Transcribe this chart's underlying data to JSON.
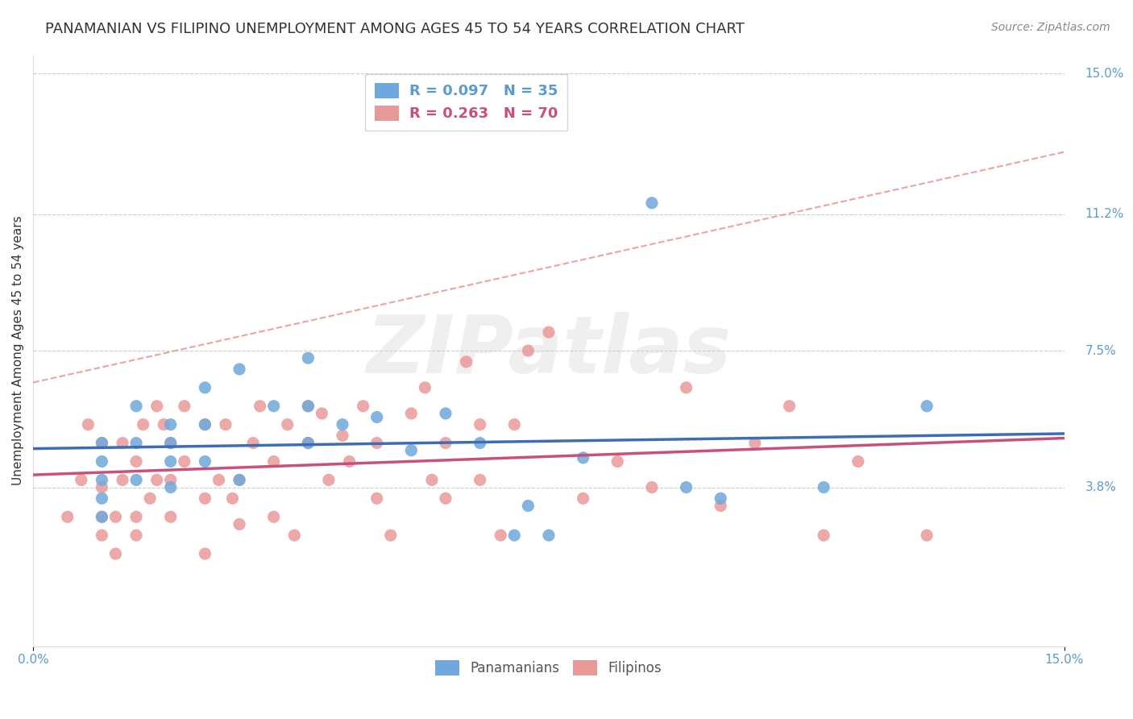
{
  "title": "PANAMANIAN VS FILIPINO UNEMPLOYMENT AMONG AGES 45 TO 54 YEARS CORRELATION CHART",
  "source": "Source: ZipAtlas.com",
  "ylabel": "Unemployment Among Ages 45 to 54 years",
  "y_tick_labels": [
    "3.8%",
    "7.5%",
    "11.2%",
    "15.0%"
  ],
  "y_tick_values": [
    0.038,
    0.075,
    0.112,
    0.15
  ],
  "xlim": [
    0.0,
    0.15
  ],
  "ylim": [
    -0.005,
    0.155
  ],
  "panamanian_R": 0.097,
  "panamanian_N": 35,
  "filipino_R": 0.263,
  "filipino_N": 70,
  "panamanian_color": "#6fa8dc",
  "filipino_color": "#ea9999",
  "panamanian_line_color": "#3d6eb5",
  "filipino_line_color": "#c94f7c",
  "background_color": "#ffffff",
  "watermark_text": "ZIPatlas",
  "legend_label_1": "Panamanians",
  "legend_label_2": "Filipinos",
  "panamanian_x": [
    0.01,
    0.01,
    0.01,
    0.01,
    0.01,
    0.015,
    0.015,
    0.015,
    0.02,
    0.02,
    0.02,
    0.02,
    0.025,
    0.025,
    0.025,
    0.03,
    0.03,
    0.035,
    0.04,
    0.04,
    0.04,
    0.045,
    0.05,
    0.055,
    0.06,
    0.065,
    0.07,
    0.072,
    0.075,
    0.08,
    0.09,
    0.095,
    0.1,
    0.115,
    0.13
  ],
  "panamanian_y": [
    0.05,
    0.045,
    0.04,
    0.035,
    0.03,
    0.06,
    0.05,
    0.04,
    0.055,
    0.05,
    0.045,
    0.038,
    0.065,
    0.055,
    0.045,
    0.07,
    0.04,
    0.06,
    0.073,
    0.06,
    0.05,
    0.055,
    0.057,
    0.048,
    0.058,
    0.05,
    0.025,
    0.033,
    0.025,
    0.046,
    0.115,
    0.038,
    0.035,
    0.038,
    0.06
  ],
  "filipino_x": [
    0.005,
    0.007,
    0.008,
    0.01,
    0.01,
    0.01,
    0.01,
    0.012,
    0.012,
    0.013,
    0.013,
    0.015,
    0.015,
    0.015,
    0.016,
    0.017,
    0.018,
    0.018,
    0.019,
    0.02,
    0.02,
    0.02,
    0.022,
    0.022,
    0.025,
    0.025,
    0.025,
    0.027,
    0.028,
    0.029,
    0.03,
    0.03,
    0.032,
    0.033,
    0.035,
    0.035,
    0.037,
    0.038,
    0.04,
    0.04,
    0.042,
    0.043,
    0.045,
    0.046,
    0.048,
    0.05,
    0.05,
    0.052,
    0.055,
    0.057,
    0.058,
    0.06,
    0.06,
    0.063,
    0.065,
    0.065,
    0.068,
    0.07,
    0.072,
    0.075,
    0.08,
    0.085,
    0.09,
    0.095,
    0.1,
    0.105,
    0.11,
    0.115,
    0.12,
    0.13
  ],
  "filipino_y": [
    0.03,
    0.04,
    0.055,
    0.025,
    0.03,
    0.038,
    0.05,
    0.02,
    0.03,
    0.04,
    0.05,
    0.025,
    0.03,
    0.045,
    0.055,
    0.035,
    0.04,
    0.06,
    0.055,
    0.03,
    0.04,
    0.05,
    0.045,
    0.06,
    0.02,
    0.035,
    0.055,
    0.04,
    0.055,
    0.035,
    0.028,
    0.04,
    0.05,
    0.06,
    0.03,
    0.045,
    0.055,
    0.025,
    0.05,
    0.06,
    0.058,
    0.04,
    0.052,
    0.045,
    0.06,
    0.035,
    0.05,
    0.025,
    0.058,
    0.065,
    0.04,
    0.035,
    0.05,
    0.072,
    0.04,
    0.055,
    0.025,
    0.055,
    0.075,
    0.08,
    0.035,
    0.045,
    0.038,
    0.065,
    0.033,
    0.05,
    0.06,
    0.025,
    0.045,
    0.025
  ]
}
